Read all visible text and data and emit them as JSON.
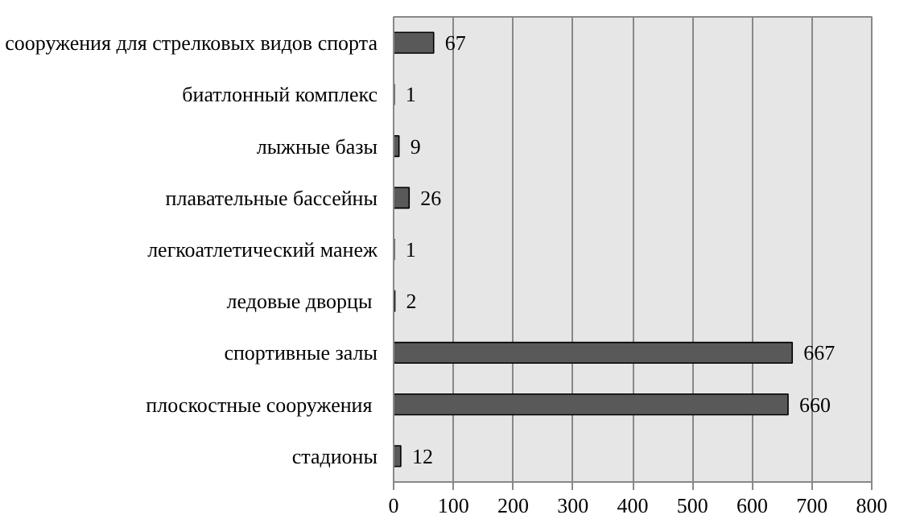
{
  "chart_data": {
    "type": "bar",
    "orientation": "horizontal",
    "categories": [
      "сооружения для стрелковых видов спорта",
      "биатлонный комплекс",
      "лыжные базы",
      "плавательные бассейны",
      "легкоатлетический манеж",
      "ледовые  дворцы",
      "спортивные залы",
      "плоскостные  сооружения",
      "стадионы"
    ],
    "values": [
      67,
      1,
      9,
      26,
      1,
      2,
      667,
      660,
      12
    ],
    "color": "#595959",
    "data_labels": true,
    "xlim": [
      0,
      800
    ],
    "xticks": [
      0,
      100,
      200,
      300,
      400,
      500,
      600,
      700,
      800
    ],
    "grid": "x"
  }
}
